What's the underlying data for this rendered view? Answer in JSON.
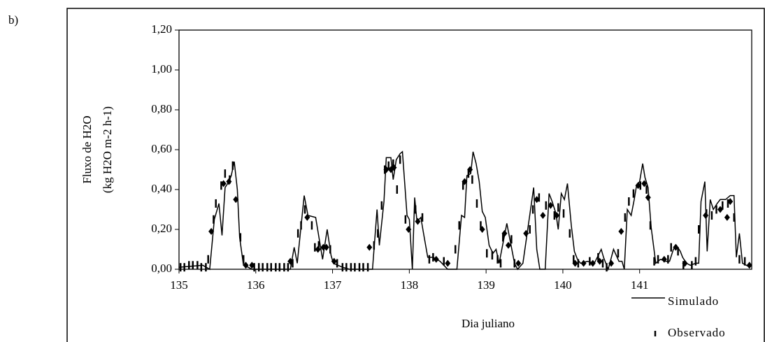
{
  "panel_label": "b)",
  "chart_data": {
    "type": "line",
    "xlabel": "Dia juliano",
    "ylabel": [
      "Fluxo de H2O",
      "(kg H2O m-2 h-1)"
    ],
    "xlim": [
      135,
      142.46
    ],
    "xticks": [
      135,
      136,
      137,
      138,
      139,
      140,
      141
    ],
    "ylim": [
      0,
      1.2
    ],
    "yticks": [
      {
        "value": 0,
        "label": "0,00"
      },
      {
        "value": 0.2,
        "label": "0,20"
      },
      {
        "value": 0.4,
        "label": "0,40"
      },
      {
        "value": 0.6,
        "label": "0,60"
      },
      {
        "value": 0.8,
        "label": "0,80"
      },
      {
        "value": 1.0,
        "label": "1,00"
      },
      {
        "value": 1.2,
        "label": "1,20"
      }
    ],
    "legend": "lower right",
    "series": [
      {
        "name": "Simulado",
        "color": "#000000",
        "marker": "line",
        "x": [
          135.0,
          135.31,
          135.4,
          135.46,
          135.52,
          135.56,
          135.6,
          135.65,
          135.68,
          135.72,
          135.76,
          135.79,
          135.84,
          135.9,
          135.95,
          136.45,
          136.5,
          136.54,
          136.63,
          136.68,
          136.78,
          136.84,
          136.87,
          136.93,
          136.98,
          137.01,
          137.13,
          137.22,
          137.52,
          137.58,
          137.61,
          137.67,
          137.7,
          137.76,
          137.79,
          137.83,
          137.88,
          137.91,
          137.97,
          138.0,
          138.04,
          138.07,
          138.1,
          138.15,
          138.19,
          138.24,
          138.31,
          138.4,
          138.5,
          138.62,
          138.68,
          138.72,
          138.75,
          138.8,
          138.83,
          138.87,
          138.91,
          138.95,
          138.99,
          139.04,
          139.09,
          139.13,
          139.17,
          139.27,
          139.31,
          139.37,
          139.41,
          139.48,
          139.62,
          139.66,
          139.7,
          139.77,
          139.82,
          139.86,
          139.91,
          139.94,
          139.98,
          140.02,
          140.06,
          140.11,
          140.15,
          140.19,
          140.23,
          140.32,
          140.41,
          140.5,
          140.53,
          140.59,
          140.66,
          140.73,
          140.77,
          140.8,
          140.84,
          140.89,
          140.93,
          140.96,
          141.0,
          141.04,
          141.07,
          141.11,
          141.15,
          141.21,
          141.27,
          141.34,
          141.39,
          141.44,
          141.48,
          141.53,
          141.56,
          141.61,
          141.66,
          141.73,
          141.77,
          141.8,
          141.85,
          141.88,
          141.92,
          141.96,
          142.01,
          142.05,
          142.12,
          142.18,
          142.23,
          142.26,
          142.3,
          142.34,
          142.39,
          142.44
        ],
        "values": [
          0.01,
          0.02,
          0.0,
          0.25,
          0.33,
          0.17,
          0.41,
          0.44,
          0.47,
          0.54,
          0.4,
          0.16,
          0.02,
          0.01,
          0.0,
          0.0,
          0.11,
          0.03,
          0.37,
          0.27,
          0.26,
          0.12,
          0.05,
          0.2,
          0.07,
          0.03,
          0.01,
          0.0,
          0.0,
          0.3,
          0.12,
          0.34,
          0.56,
          0.56,
          0.45,
          0.55,
          0.58,
          0.59,
          0.27,
          0.25,
          0.0,
          0.36,
          0.24,
          0.26,
          0.17,
          0.06,
          0.06,
          0.04,
          0.0,
          0.0,
          0.27,
          0.26,
          0.47,
          0.48,
          0.59,
          0.53,
          0.44,
          0.29,
          0.26,
          0.12,
          0.08,
          0.1,
          0.03,
          0.23,
          0.15,
          0.03,
          0.0,
          0.03,
          0.41,
          0.1,
          0.0,
          0.0,
          0.38,
          0.34,
          0.28,
          0.2,
          0.38,
          0.35,
          0.43,
          0.22,
          0.09,
          0.05,
          0.03,
          0.04,
          0.03,
          0.1,
          0.06,
          0.0,
          0.1,
          0.04,
          0.04,
          0.0,
          0.3,
          0.27,
          0.35,
          0.42,
          0.44,
          0.53,
          0.46,
          0.41,
          0.21,
          0.03,
          0.05,
          0.04,
          0.04,
          0.1,
          0.12,
          0.09,
          0.06,
          0.03,
          0.02,
          0.03,
          0.03,
          0.34,
          0.44,
          0.09,
          0.35,
          0.3,
          0.33,
          0.35,
          0.35,
          0.37,
          0.37,
          0.06,
          0.18,
          0.03,
          0.02,
          0.01
        ]
      },
      {
        "name": "Observado",
        "color": "#000000",
        "marker": "dash",
        "x": [
          135.02,
          135.07,
          135.13,
          135.18,
          135.24,
          135.29,
          135.35,
          135.38,
          135.45,
          135.48,
          135.55,
          135.6,
          135.66,
          135.7,
          135.8,
          135.84,
          135.98,
          136.04,
          136.09,
          136.15,
          136.2,
          136.26,
          136.31,
          136.37,
          136.42,
          136.48,
          136.55,
          136.59,
          136.64,
          136.73,
          136.77,
          136.82,
          136.97,
          137.06,
          137.13,
          137.18,
          137.24,
          137.29,
          137.35,
          137.4,
          137.46,
          137.54,
          137.59,
          137.64,
          137.68,
          137.73,
          137.79,
          137.84,
          137.88,
          137.95,
          138.08,
          138.17,
          138.26,
          138.31,
          138.45,
          138.6,
          138.65,
          138.7,
          138.77,
          138.82,
          138.88,
          138.93,
          139.01,
          139.08,
          139.15,
          139.19,
          139.22,
          139.33,
          139.37,
          139.57,
          139.61,
          139.69,
          139.78,
          139.89,
          139.94,
          140.01,
          140.09,
          140.14,
          140.2,
          140.35,
          140.46,
          140.52,
          140.57,
          140.72,
          140.81,
          140.86,
          140.92,
          141.01,
          141.09,
          141.14,
          141.19,
          141.24,
          141.37,
          141.41,
          141.5,
          141.57,
          141.68,
          141.73,
          141.77,
          141.87,
          141.94,
          142.0,
          142.08,
          142.15,
          142.23,
          142.3,
          142.37
        ],
        "values": [
          0.01,
          0.01,
          0.02,
          0.02,
          0.02,
          0.01,
          0.01,
          0.05,
          0.25,
          0.33,
          0.42,
          0.48,
          0.45,
          0.52,
          0.16,
          0.05,
          0.01,
          0.01,
          0.01,
          0.01,
          0.01,
          0.01,
          0.01,
          0.01,
          0.01,
          0.03,
          0.18,
          0.22,
          0.3,
          0.22,
          0.11,
          0.12,
          0.1,
          0.03,
          0.01,
          0.01,
          0.01,
          0.01,
          0.01,
          0.01,
          0.01,
          0.12,
          0.18,
          0.32,
          0.5,
          0.52,
          0.53,
          0.4,
          0.55,
          0.25,
          0.3,
          0.26,
          0.05,
          0.06,
          0.04,
          0.1,
          0.22,
          0.42,
          0.48,
          0.45,
          0.33,
          0.22,
          0.08,
          0.07,
          0.05,
          0.03,
          0.16,
          0.15,
          0.03,
          0.2,
          0.3,
          0.36,
          0.32,
          0.27,
          0.31,
          0.28,
          0.18,
          0.05,
          0.03,
          0.04,
          0.06,
          0.03,
          0.01,
          0.08,
          0.26,
          0.34,
          0.38,
          0.42,
          0.4,
          0.22,
          0.04,
          0.05,
          0.05,
          0.11,
          0.09,
          0.02,
          0.02,
          0.04,
          0.2,
          0.28,
          0.27,
          0.3,
          0.32,
          0.33,
          0.26,
          0.05,
          0.04
        ]
      },
      {
        "color": "#000000",
        "marker": "diamond",
        "x": [
          135.42,
          135.58,
          135.65,
          135.74,
          135.87,
          135.95,
          136.45,
          136.67,
          136.81,
          136.88,
          136.92,
          137.02,
          137.48,
          137.7,
          137.76,
          137.8,
          137.99,
          138.11,
          138.35,
          138.5,
          138.72,
          138.79,
          138.95,
          139.24,
          139.29,
          139.42,
          139.52,
          139.66,
          139.74,
          139.84,
          139.92,
          140.16,
          140.27,
          140.39,
          140.48,
          140.63,
          140.76,
          140.98,
          141.06,
          141.11,
          141.32,
          141.47,
          141.59,
          141.86,
          142.05,
          142.14,
          142.18,
          142.43
        ],
        "values": [
          0.19,
          0.43,
          0.44,
          0.35,
          0.02,
          0.02,
          0.04,
          0.26,
          0.1,
          0.11,
          0.11,
          0.04,
          0.11,
          0.5,
          0.5,
          0.51,
          0.2,
          0.24,
          0.05,
          0.03,
          0.44,
          0.5,
          0.2,
          0.18,
          0.12,
          0.03,
          0.18,
          0.35,
          0.27,
          0.32,
          0.27,
          0.03,
          0.03,
          0.03,
          0.04,
          0.03,
          0.19,
          0.42,
          0.43,
          0.36,
          0.05,
          0.11,
          0.03,
          0.27,
          0.3,
          0.26,
          0.34,
          0.02
        ]
      }
    ]
  }
}
